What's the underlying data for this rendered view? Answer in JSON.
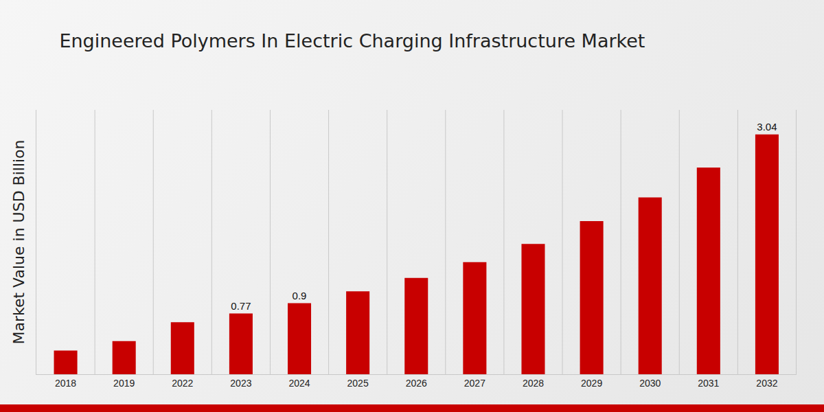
{
  "chart_data": {
    "type": "bar",
    "title": "Engineered Polymers In Electric Charging Infrastructure Market",
    "y_label": "Market Value in USD Billion",
    "categories": [
      "2018",
      "2019",
      "2022",
      "2023",
      "2024",
      "2025",
      "2026",
      "2027",
      "2028",
      "2029",
      "2030",
      "2031",
      "2032"
    ],
    "values": [
      0.3,
      0.42,
      0.66,
      0.77,
      0.9,
      1.05,
      1.22,
      1.42,
      1.65,
      1.94,
      2.24,
      2.62,
      3.04
    ],
    "value_labels": [
      null,
      null,
      null,
      "0.77",
      "0.9",
      null,
      null,
      null,
      null,
      null,
      null,
      null,
      "3.04"
    ],
    "data_labels": true,
    "color": "#c80000",
    "ylim": [
      0,
      3.35
    ],
    "tick_labels": "x",
    "grid": true
  }
}
